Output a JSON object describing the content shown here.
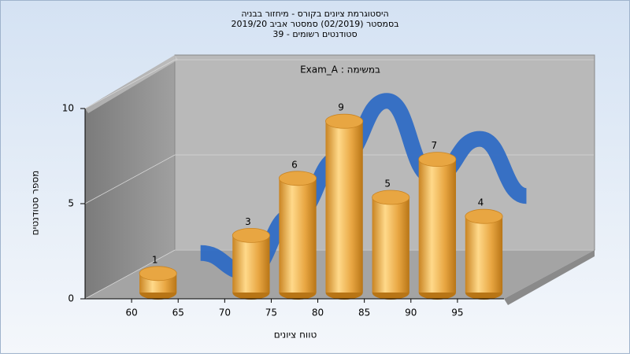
{
  "chart_data": {
    "type": "histogram",
    "title_lines": [
      "היסטוגרמת ציונים בקורס - מיחזור בבניה",
      "בסמסטר  (02/2019)  סמסטר אביב 2019/20",
      "סטודנטים רשומים - 39"
    ],
    "annotation": "במשימה : Exam_A",
    "x_label": "טווח ציונים",
    "y_label": "מספר סטודנטים",
    "bins": [
      60,
      65,
      70,
      75,
      80,
      85,
      90,
      95,
      100
    ],
    "values": [
      1,
      0,
      3,
      6,
      9,
      5,
      7,
      4
    ],
    "color": "#e8a642",
    "line_color": "#2f6cc4",
    "xlim": [
      55,
      100
    ],
    "xticks": [
      60,
      65,
      70,
      75,
      80,
      85,
      90,
      95
    ],
    "ylim": [
      0,
      10
    ],
    "yticks": [
      0,
      5,
      10
    ],
    "grid": true
  }
}
